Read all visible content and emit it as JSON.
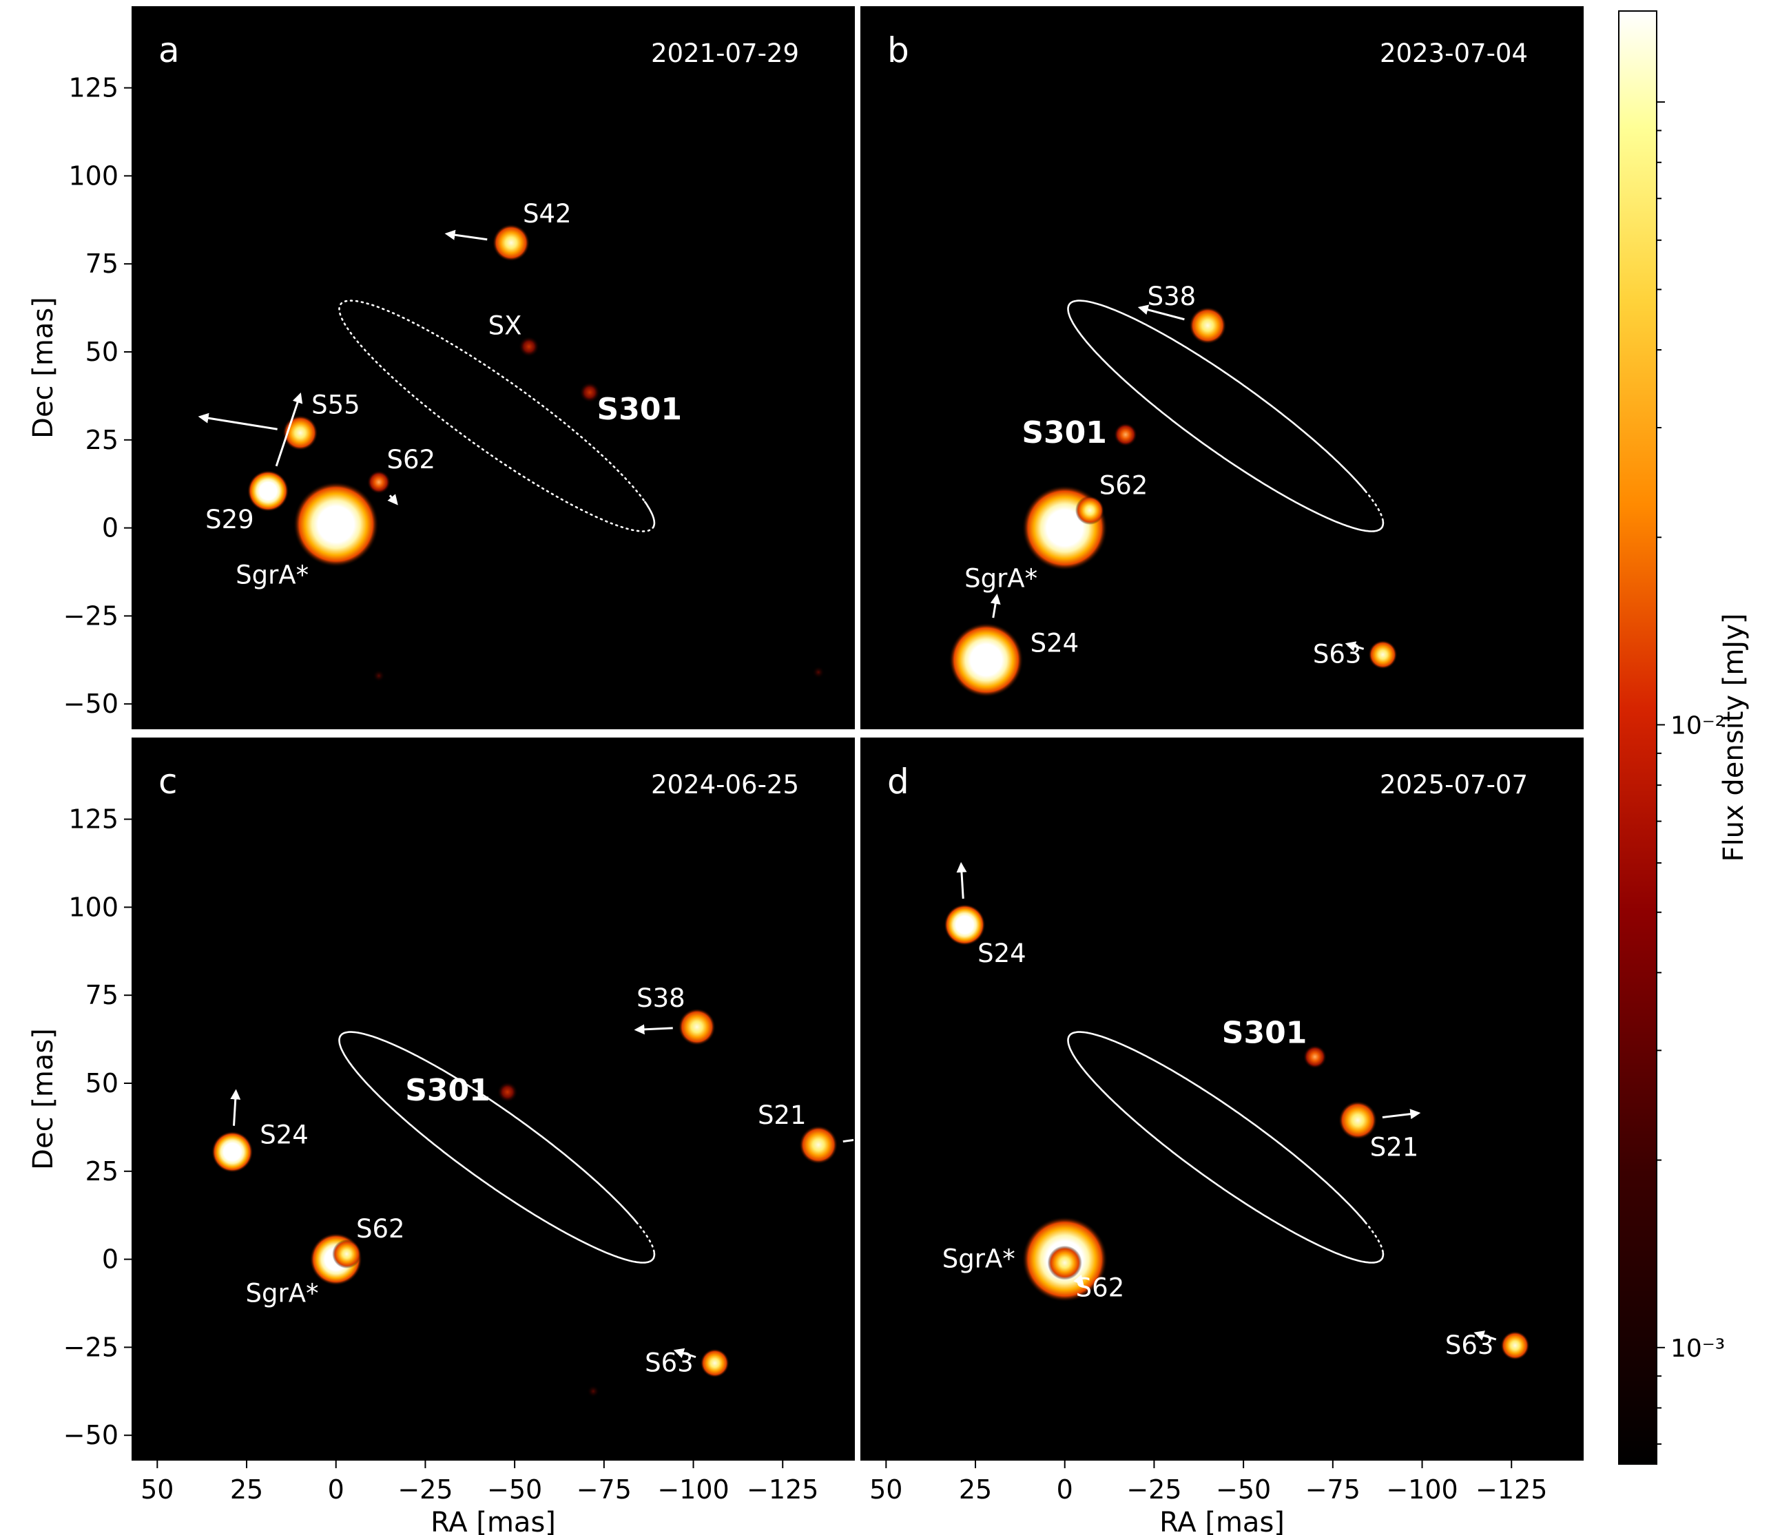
{
  "chart_data": {
    "type": "scatter",
    "colormap": "afmhot",
    "colorbar": {
      "label": "Flux density [mJy]",
      "scale": "log",
      "range": [
        0.00065,
        0.14
      ],
      "ticks": [
        {
          "value": 0.01,
          "label": "10⁻²"
        },
        {
          "value": 0.001,
          "label": "10⁻³"
        }
      ]
    },
    "xlabel": "RA [mas]",
    "ylabel": "Dec [mas]",
    "xlim": [
      57,
      -145
    ],
    "ylim": [
      -57,
      148
    ],
    "xticks": [
      {
        "v": 50,
        "label": "50"
      },
      {
        "v": 25,
        "label": "25"
      },
      {
        "v": 0,
        "label": "0"
      },
      {
        "v": -25,
        "label": "−25"
      },
      {
        "v": -50,
        "label": "−50"
      },
      {
        "v": -75,
        "label": "−75"
      },
      {
        "v": -100,
        "label": "−100"
      },
      {
        "v": -125,
        "label": "−125"
      }
    ],
    "yticks": [
      {
        "v": 125,
        "label": "125"
      },
      {
        "v": 100,
        "label": "100"
      },
      {
        "v": 75,
        "label": "75"
      },
      {
        "v": 50,
        "label": "50"
      },
      {
        "v": 25,
        "label": "25"
      },
      {
        "v": 0,
        "label": "0"
      },
      {
        "v": -25,
        "label": "−25"
      },
      {
        "v": -50,
        "label": "−50"
      }
    ],
    "orbit": {
      "center": [
        -45,
        31.8
      ],
      "semi_major": 54,
      "semi_minor": 10,
      "angle_deg": 36
    },
    "panels": [
      {
        "letter": "a",
        "date": "2021-07-29",
        "solid_arc": [
          152,
          178
        ],
        "dotted_arc": [
          178,
          512
        ],
        "stars": [
          {
            "name": "SgrA*",
            "x": 0,
            "y": 1,
            "flux": 0.09,
            "label": "SgrA*",
            "label_pos": "bottom-left"
          },
          {
            "name": "S42",
            "x": -49,
            "y": 81,
            "flux": 0.025,
            "label": "S42",
            "label_pos": "top-right",
            "arrow": [
              -18,
              2.5
            ]
          },
          {
            "name": "S55",
            "x": 10,
            "y": 27,
            "flux": 0.018,
            "label": "S55",
            "label_pos": "top-right",
            "arrow": [
              -28,
              4.5
            ]
          },
          {
            "name": "S29",
            "x": 19,
            "y": 10.5,
            "flux": 0.05,
            "label": "S29",
            "label_pos": "bottom-left",
            "arrow": [
              9,
              27
            ]
          },
          {
            "name": "S62",
            "x": -12,
            "y": 13,
            "flux": 0.006,
            "label": "S62",
            "label_pos": "top-right",
            "arrow": [
              5,
              -6
            ]
          },
          {
            "name": "SX",
            "x": -54,
            "y": 51.5,
            "flux": 0.0025,
            "label": "SX",
            "label_pos": "top-left"
          },
          {
            "name": "S301",
            "x": -71,
            "y": 38.5,
            "flux": 0.0025,
            "label": "S301",
            "label_pos": "bottom-right",
            "bold": true
          },
          {
            "name": "faint-a1",
            "x": -12,
            "y": -42,
            "flux": 0.0012
          },
          {
            "name": "faint-a2",
            "x": -135,
            "y": -41,
            "flux": 0.001
          }
        ]
      },
      {
        "letter": "b",
        "date": "2023-07-04",
        "solid_arc": [
          170,
          505
        ],
        "dotted_arc": [
          145,
          170
        ],
        "stars": [
          {
            "name": "SgrA*",
            "x": 0,
            "y": 0,
            "flux": 0.09,
            "label": "SgrA*",
            "label_pos": "bottom-left"
          },
          {
            "name": "S38",
            "x": -40,
            "y": 57.5,
            "flux": 0.025,
            "label": "S38",
            "label_pos": "top-left",
            "arrow": [
              -19,
              5
            ]
          },
          {
            "name": "S301",
            "x": -17,
            "y": 26.5,
            "flux": 0.004,
            "label": "S301",
            "label_pos": "left",
            "bold": true
          },
          {
            "name": "S62",
            "x": -7,
            "y": 5,
            "flux": 0.01,
            "label": "S62",
            "label_pos": "top-right"
          },
          {
            "name": "S24",
            "x": 22,
            "y": -37.5,
            "flux": 0.08,
            "label": "S24",
            "label_pos": "right",
            "arrow": [
              3,
              18
            ]
          },
          {
            "name": "S63",
            "x": -89,
            "y": -36,
            "flux": 0.012,
            "label": "S63",
            "label_pos": "left",
            "arrow": [
              -10,
              3
            ]
          }
        ]
      },
      {
        "letter": "c",
        "date": "2024-06-25",
        "solid_arc": [
          170,
          505
        ],
        "dotted_arc": [
          145,
          170
        ],
        "stars": [
          {
            "name": "SgrA*",
            "x": 0,
            "y": 0,
            "flux": 0.06,
            "label": "SgrA*",
            "label_pos": "bottom-left"
          },
          {
            "name": "S62",
            "x": -3,
            "y": 1.5,
            "flux": 0.012,
            "label": "S62",
            "label_pos": "top-right"
          },
          {
            "name": "S301",
            "x": -48,
            "y": 47.5,
            "flux": 0.003,
            "label": "S301",
            "label_pos": "left",
            "bold": true
          },
          {
            "name": "S38",
            "x": -101,
            "y": 66,
            "flux": 0.025,
            "label": "S38",
            "label_pos": "top-left",
            "arrow": [
              -17,
              -0.8
            ]
          },
          {
            "name": "S21",
            "x": -135,
            "y": 32.5,
            "flux": 0.03,
            "label": "S21",
            "label_pos": "top-left",
            "arrow": [
              16,
              2.2
            ]
          },
          {
            "name": "S24",
            "x": 29,
            "y": 30.5,
            "flux": 0.05,
            "label": "S24",
            "label_pos": "right",
            "arrow": [
              1,
              17
            ]
          },
          {
            "name": "S63",
            "x": -106,
            "y": -29.5,
            "flux": 0.012,
            "label": "S63",
            "label_pos": "left",
            "arrow": [
              -11,
              3.5
            ]
          },
          {
            "name": "faint-c1",
            "x": -72,
            "y": -37.5,
            "flux": 0.0012
          }
        ]
      },
      {
        "letter": "d",
        "date": "2025-07-07",
        "solid_arc": [
          170,
          505
        ],
        "dotted_arc": [
          145,
          170
        ],
        "stars": [
          {
            "name": "SgrA*",
            "x": 0,
            "y": 0,
            "flux": 0.09,
            "label": "SgrA*",
            "label_pos": "left"
          },
          {
            "name": "S62",
            "x": 0,
            "y": -1,
            "flux": 0.015,
            "label": "S62",
            "label_pos": "bottom-right",
            "arrow": [
              5,
              -6
            ]
          },
          {
            "name": "S301",
            "x": -70,
            "y": 57.5,
            "flux": 0.004,
            "label": "S301",
            "label_pos": "top-left",
            "bold": true
          },
          {
            "name": "S21",
            "x": -82,
            "y": 39.5,
            "flux": 0.03,
            "label": "S21",
            "label_pos": "bottom-right",
            "arrow": [
              17,
              2
            ]
          },
          {
            "name": "S24",
            "x": 28,
            "y": 95,
            "flux": 0.05,
            "label": "S24",
            "label_pos": "bottom-right",
            "arrow": [
              -1,
              17
            ]
          },
          {
            "name": "S63",
            "x": -126,
            "y": -24.5,
            "flux": 0.012,
            "label": "S63",
            "label_pos": "left",
            "arrow": [
              -11,
              3.5
            ]
          }
        ]
      }
    ]
  }
}
